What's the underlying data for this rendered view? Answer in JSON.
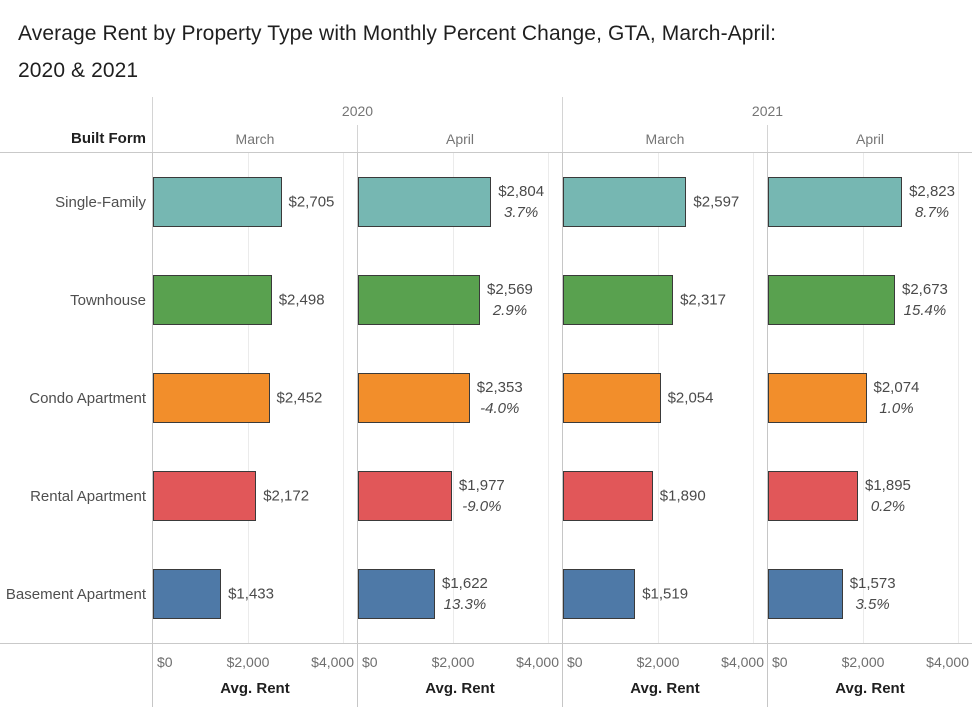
{
  "title_lines": [
    "Average Rent by Property Type with Monthly Percent Change, GTA, March-April:",
    "2020 & 2021"
  ],
  "header": {
    "row_dim_label": "Built Form",
    "years": [
      {
        "label": "2020",
        "months": [
          "March",
          "April"
        ]
      },
      {
        "label": "2021",
        "months": [
          "March",
          "April"
        ]
      }
    ]
  },
  "axis": {
    "ticks": [
      "$0",
      "$2,000",
      "$4,000"
    ],
    "tick_values": [
      0,
      2000,
      4000
    ],
    "label": "Avg. Rent",
    "xlim": [
      0,
      4000
    ]
  },
  "colors": {
    "single_family": "#76b7b2",
    "townhouse": "#59a14f",
    "condo_apartment": "#f28e2b",
    "rental_apartment": "#e15759",
    "basement_apartment": "#4e79a7",
    "bar_border": "#3a3a3a",
    "palette": [
      "#76b7b2",
      "#59a14f",
      "#f28e2b",
      "#e15759",
      "#4e79a7"
    ]
  },
  "chart_data": {
    "type": "bar",
    "orientation": "horizontal",
    "title": "Average Rent by Property Type with Monthly Percent Change, GTA, March-April: 2020 & 2021",
    "xlabel": "Avg. Rent",
    "xlim": [
      0,
      4000
    ],
    "grid": true,
    "categories": [
      "Single-Family",
      "Townhouse",
      "Condo Apartment",
      "Rental Apartment",
      "Basement Apartment"
    ],
    "series": [
      {
        "year": "2020",
        "month": "March",
        "values": [
          2705,
          2498,
          2452,
          2172,
          1433
        ],
        "value_labels": [
          "$2,705",
          "$2,498",
          "$2,452",
          "$2,172",
          "$1,433"
        ],
        "pct_labels": [
          null,
          null,
          null,
          null,
          null
        ]
      },
      {
        "year": "2020",
        "month": "April",
        "values": [
          2804,
          2569,
          2353,
          1977,
          1622
        ],
        "value_labels": [
          "$2,804",
          "$2,569",
          "$2,353",
          "$1,977",
          "$1,622"
        ],
        "pct_labels": [
          "3.7%",
          "2.9%",
          "-4.0%",
          "-9.0%",
          "13.3%"
        ]
      },
      {
        "year": "2021",
        "month": "March",
        "values": [
          2597,
          2317,
          2054,
          1890,
          1519
        ],
        "value_labels": [
          "$2,597",
          "$2,317",
          "$2,054",
          "$1,890",
          "$1,519"
        ],
        "pct_labels": [
          null,
          null,
          null,
          null,
          null
        ]
      },
      {
        "year": "2021",
        "month": "April",
        "values": [
          2823,
          2673,
          2074,
          1895,
          1573
        ],
        "value_labels": [
          "$2,823",
          "$2,673",
          "$2,074",
          "$1,895",
          "$1,573"
        ],
        "pct_labels": [
          "8.7%",
          "15.4%",
          "1.0%",
          "0.2%",
          "3.5%"
        ]
      }
    ]
  }
}
